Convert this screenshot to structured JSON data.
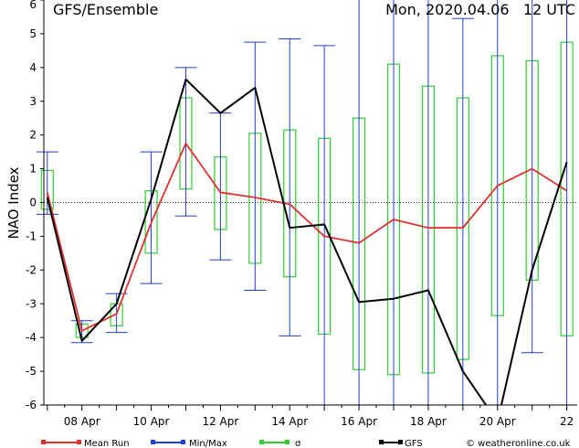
{
  "chart_data": {
    "type": "line",
    "title": "GFS/Ensemble",
    "run_label": "Mon, 2020.04.06   12 UTC",
    "ylabel": "NAO Index",
    "ylim": [
      -6,
      6
    ],
    "yticks": [
      -6,
      -5,
      -4,
      -3,
      -2,
      -1,
      0,
      1,
      2,
      3,
      4,
      5,
      6
    ],
    "xlim": [
      6.9,
      22.3
    ],
    "xticks": [
      {
        "x": 8,
        "label": "08 Apr"
      },
      {
        "x": 10,
        "label": "10 Apr"
      },
      {
        "x": 12,
        "label": "12 Apr"
      },
      {
        "x": 14,
        "label": "14 Apr"
      },
      {
        "x": 16,
        "label": "16 Apr"
      },
      {
        "x": 18,
        "label": "18 Apr"
      },
      {
        "x": 20,
        "label": "20 Apr"
      },
      {
        "x": 22,
        "label": "22"
      }
    ],
    "zero_line": true,
    "series": [
      {
        "name": "Mean Run",
        "color": "#e03030",
        "x": [
          7,
          8,
          9,
          10,
          11,
          12,
          13,
          14,
          15,
          16,
          17,
          18,
          19,
          20,
          21,
          22
        ],
        "values": [
          0.3,
          -3.8,
          -3.3,
          -0.6,
          1.75,
          0.3,
          0.15,
          -0.05,
          -1.0,
          -1.2,
          -0.5,
          -0.75,
          -0.75,
          0.5,
          1.0,
          0.35
        ]
      },
      {
        "name": "GFS",
        "color": "#000000",
        "x": [
          7,
          8,
          9,
          10,
          11,
          12,
          13,
          14,
          15,
          16,
          17,
          18,
          19,
          20,
          21,
          22
        ],
        "values": [
          0.15,
          -4.1,
          -3.0,
          0.1,
          3.65,
          2.65,
          3.4,
          -0.75,
          -0.65,
          -2.95,
          -2.85,
          -2.6,
          -5.0,
          -6.5,
          -2.0,
          1.2
        ]
      }
    ],
    "minmax": {
      "name": "Min/Max",
      "color": "#2040d0",
      "x": [
        7,
        8,
        9,
        10,
        11,
        12,
        13,
        14,
        15,
        16,
        17,
        18,
        19,
        20,
        21,
        22
      ],
      "min": [
        -0.35,
        -4.15,
        -3.85,
        -2.4,
        -0.4,
        -1.7,
        -2.6,
        -3.95,
        -6.2,
        -6.5,
        -6.5,
        -6.5,
        -6.2,
        -6.5,
        -4.45,
        -6.5
      ],
      "max": [
        1.5,
        -3.5,
        -2.7,
        1.5,
        4.0,
        2.65,
        4.75,
        4.85,
        4.65,
        6.5,
        6.5,
        6.5,
        5.45,
        6.5,
        6.5,
        6.5
      ]
    },
    "sigma": {
      "name": "σ",
      "color": "#33cc33",
      "x": [
        7,
        8,
        9,
        10,
        11,
        12,
        13,
        14,
        15,
        16,
        17,
        18,
        19,
        20,
        21,
        22
      ],
      "low": [
        -0.2,
        -4.0,
        -3.65,
        -1.5,
        0.4,
        -0.8,
        -1.8,
        -2.2,
        -3.9,
        -4.95,
        -5.1,
        -5.05,
        -4.65,
        -3.35,
        -2.3,
        -3.95
      ],
      "high": [
        0.95,
        -3.6,
        -3.0,
        0.35,
        3.1,
        1.35,
        2.05,
        2.15,
        1.9,
        2.5,
        4.1,
        3.45,
        3.1,
        4.35,
        4.2,
        4.75
      ]
    }
  },
  "legend": {
    "items": [
      {
        "label": "Mean Run",
        "color": "#e03030"
      },
      {
        "label": "Min/Max",
        "color": "#2040d0"
      },
      {
        "label": "σ",
        "color": "#33cc33"
      },
      {
        "label": "GFS",
        "color": "#000000"
      }
    ],
    "credit": "© weatheronline.co.uk"
  }
}
